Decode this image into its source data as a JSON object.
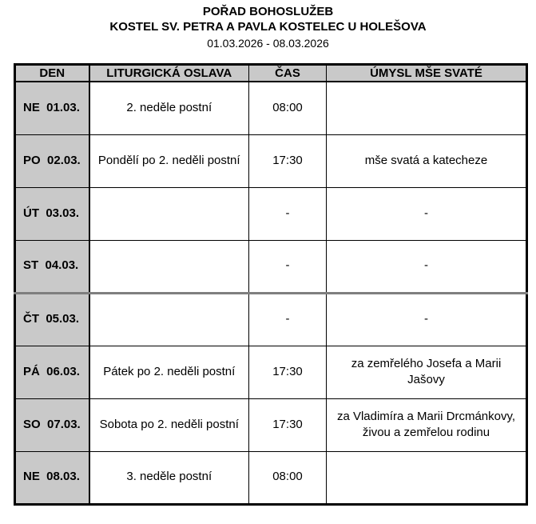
{
  "header": {
    "title": "POŘAD BOHOSLUŽEB",
    "subtitle": "KOSTEL SV. PETRA A PAVLA KOSTELEC U HOLEŠOVA",
    "date_range": "01.03.2026 - 08.03.2026"
  },
  "table": {
    "columns": [
      "DEN",
      "LITURGICKÁ OSLAVA",
      "ČAS",
      "ÚMYSL MŠE SVATÉ"
    ],
    "rows": [
      {
        "day": "NE  01.03.",
        "celebration": "2. neděle postní",
        "time": "08:00",
        "intention": ""
      },
      {
        "day": "PO  02.03.",
        "celebration": "Pondělí po 2. neděli postní",
        "time": "17:30",
        "intention": "mše svatá a katecheze"
      },
      {
        "day": "ÚT  03.03.",
        "celebration": "",
        "time": "-",
        "intention": "-"
      },
      {
        "day": "ST  04.03.",
        "celebration": "",
        "time": "-",
        "intention": "-"
      },
      {
        "day": "ČT  05.03.",
        "celebration": "",
        "time": "-",
        "intention": "-"
      },
      {
        "day": "PÁ  06.03.",
        "celebration": "Pátek po 2. neděli postní",
        "time": "17:30",
        "intention": "za zemřelého Josefa a Marii Jašovy"
      },
      {
        "day": "SO  07.03.",
        "celebration": "Sobota po 2. neděli postní",
        "time": "17:30",
        "intention": "za Vladimíra a Marii Drcmánkovy, živou a zemřelou rodinu"
      },
      {
        "day": "NE  08.03.",
        "celebration": "3. neděle postní",
        "time": "08:00",
        "intention": ""
      }
    ]
  },
  "colors": {
    "header_bg": "#c9c9c9",
    "border": "#000000",
    "page_break_rule": "#7f7f7f"
  }
}
